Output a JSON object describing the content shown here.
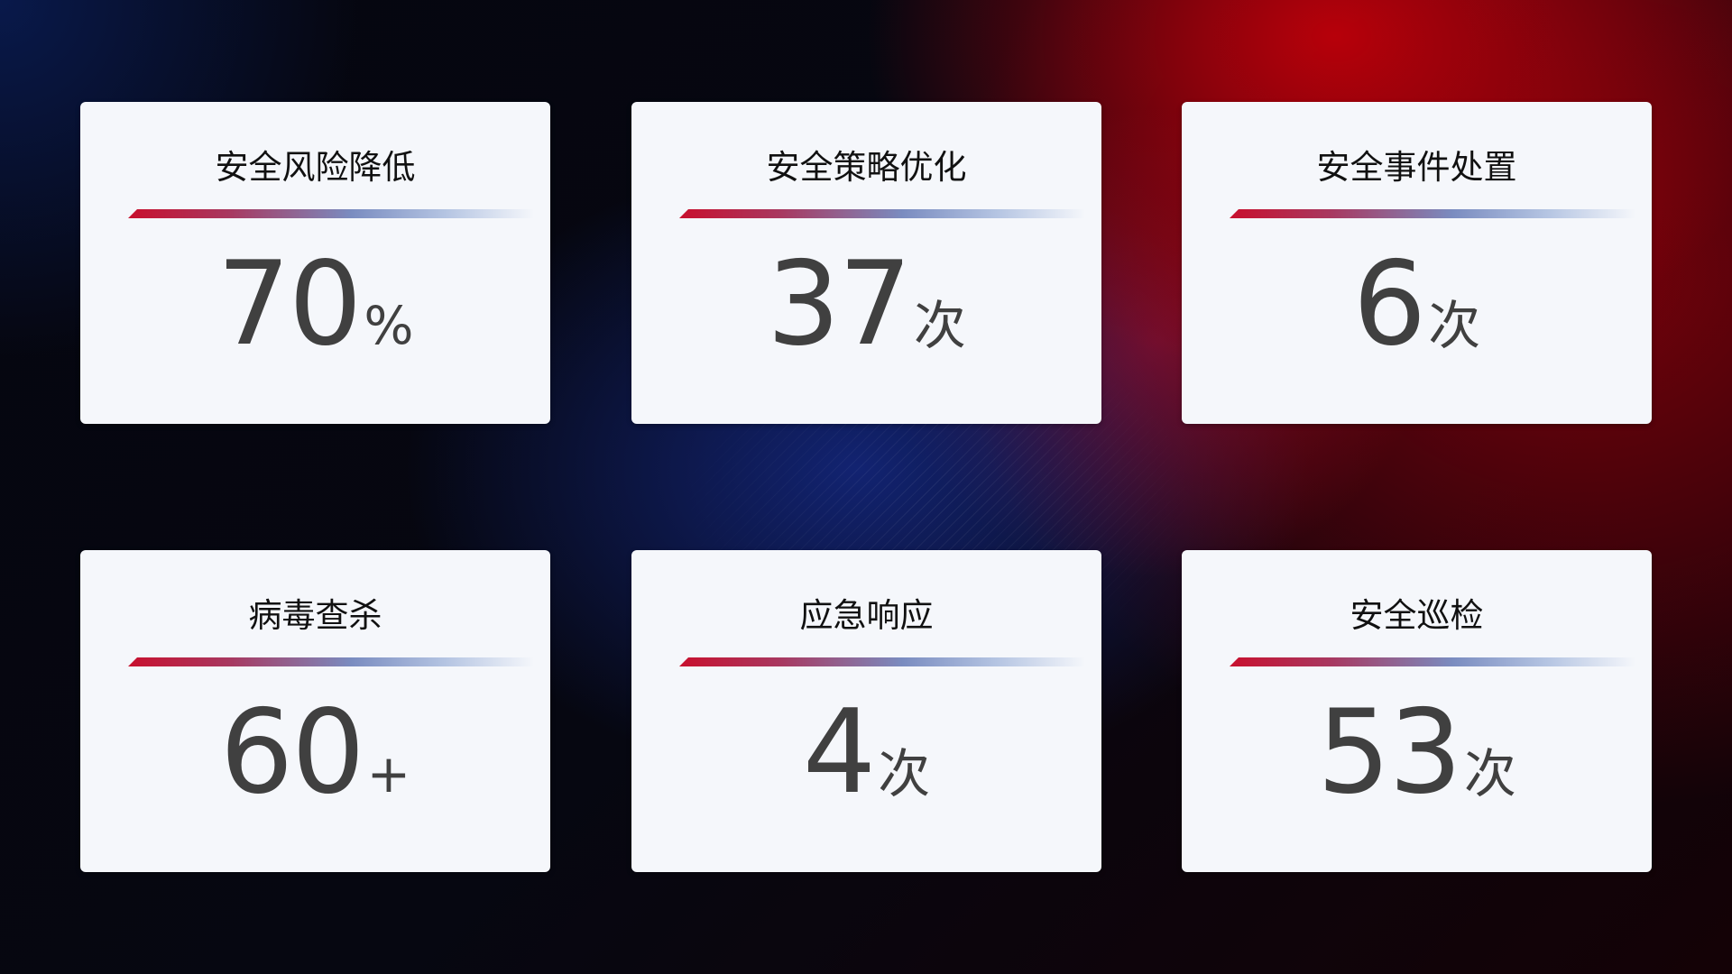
{
  "cards": [
    {
      "title": "安全风险降低",
      "value": "70",
      "unit": "%"
    },
    {
      "title": "安全策略优化",
      "value": "37",
      "unit": "次"
    },
    {
      "title": "安全事件处置",
      "value": "6",
      "unit": "次"
    },
    {
      "title": "病毒查杀",
      "value": "60",
      "unit": "+"
    },
    {
      "title": "应急响应",
      "value": "4",
      "unit": "次"
    },
    {
      "title": "安全巡检",
      "value": "53",
      "unit": "次"
    }
  ],
  "colors": {
    "accent_red": "#c8102e",
    "accent_blue": "#7a8cc0",
    "card_bg": "#f5f7fb",
    "value_text": "#404040"
  }
}
